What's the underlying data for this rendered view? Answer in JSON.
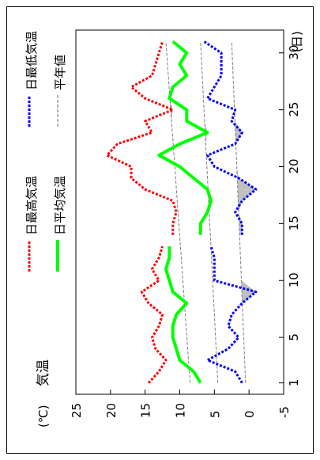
{
  "chart_data": {
    "type": "line",
    "title": "気温",
    "unit": "(℃)",
    "day_unit": "(日)",
    "x_ticks": [
      1,
      5,
      10,
      15,
      20,
      25,
      30
    ],
    "xlim": [
      0,
      32
    ],
    "y_ticks": [
      25,
      20,
      15,
      10,
      5,
      0,
      -5
    ],
    "ylim": [
      -5,
      25
    ],
    "grid": false,
    "legend_position": "top",
    "colors": {
      "max": "#ff0000",
      "avg": "#00ff00",
      "min": "#0000ff",
      "normal": "#808080",
      "shade": "#c0c0c0"
    },
    "legend": {
      "max": "日最高気温",
      "min": "日最低気温",
      "avg": "日平均気温",
      "normal": "平年値"
    },
    "segments": [
      {
        "days": [
          1,
          2,
          3,
          4,
          5,
          6,
          7,
          8,
          9,
          10,
          11,
          12,
          13
        ],
        "max": [
          14.5,
          13,
          12,
          13.5,
          14,
          13,
          12.5,
          14.5,
          15.5,
          13,
          14,
          13,
          12.5
        ],
        "avg": [
          7,
          8,
          10,
          10.5,
          11,
          11,
          10.5,
          9,
          11,
          11.5,
          12,
          11.5,
          11.5
        ],
        "min": [
          1,
          2,
          6,
          3,
          1.5,
          3,
          2.5,
          1,
          -1,
          5,
          5,
          5,
          5.5
        ]
      },
      {
        "days": [
          14,
          15,
          16,
          17,
          18,
          19,
          20,
          21,
          22,
          23,
          24,
          25,
          26,
          27,
          28,
          29,
          30,
          31
        ],
        "max": [
          11,
          11,
          10.5,
          11,
          15,
          17,
          17,
          20.5,
          19,
          14,
          15,
          11,
          15,
          17,
          14,
          13.5,
          13,
          12.5
        ],
        "avg": [
          7,
          7,
          6,
          5.5,
          6,
          8,
          10,
          13,
          10,
          6,
          9,
          9,
          11.5,
          11,
          9,
          10,
          9,
          11
        ],
        "min": [
          1,
          1,
          2,
          1,
          -1,
          1.5,
          5,
          6,
          2,
          1,
          2.5,
          2,
          6,
          5,
          4,
          4,
          4,
          6.5
        ]
      }
    ],
    "normal": {
      "days": [
        1,
        31
      ],
      "max": [
        8.5,
        12
      ],
      "avg": [
        4.5,
        7
      ],
      "min": [
        0.5,
        2.5
      ]
    }
  }
}
